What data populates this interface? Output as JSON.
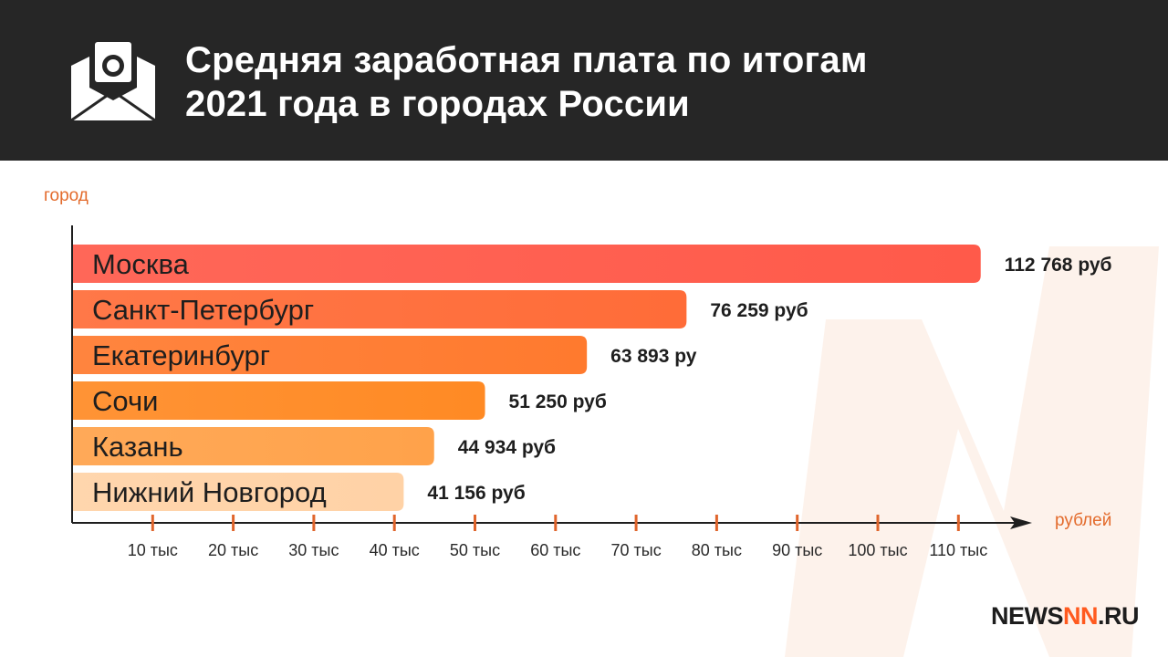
{
  "header": {
    "title_line1": "Средняя заработная плата по итогам",
    "title_line2": "2021 года в городах России",
    "icon": "envelope-money-icon"
  },
  "brand": {
    "name_left": "NEWS",
    "name_mark": "NN",
    "name_right": ".RU"
  },
  "colors": {
    "header_bg": "#262626",
    "accent": "#e36b2c",
    "tick": "#e0652c",
    "bar_colors": [
      "#ff5a4a",
      "#ff6c38",
      "#ff7a2e",
      "#ff8a24",
      "#ffa24a",
      "#ffd2a6"
    ]
  },
  "chart_data": {
    "type": "bar",
    "orientation": "horizontal",
    "title": "Средняя заработная плата по итогам 2021 года в городах России",
    "ylabel": "город",
    "xlabel": "рублей",
    "categories": [
      "Москва",
      "Санкт-Петербург",
      "Екатеринбург",
      "Сочи",
      "Казань",
      "Нижний Новгород"
    ],
    "values": [
      112768,
      76259,
      63893,
      51250,
      44934,
      41156
    ],
    "value_labels": [
      "112 768 руб",
      "76 259 руб",
      "63 893 ру",
      "51 250 руб",
      "44 934 руб",
      "41 156 руб"
    ],
    "xticks": [
      10000,
      20000,
      30000,
      40000,
      50000,
      60000,
      70000,
      80000,
      90000,
      100000,
      110000
    ],
    "xtick_labels": [
      "10 тыс",
      "20 тыс",
      "30 тыс",
      "40 тыс",
      "50 тыс",
      "60 тыс",
      "70 тыс",
      "80 тыс",
      "90 тыс",
      "100 тыс",
      "110 тыс"
    ],
    "xlim": [
      0,
      120000
    ],
    "grid": false,
    "legend": "none"
  }
}
